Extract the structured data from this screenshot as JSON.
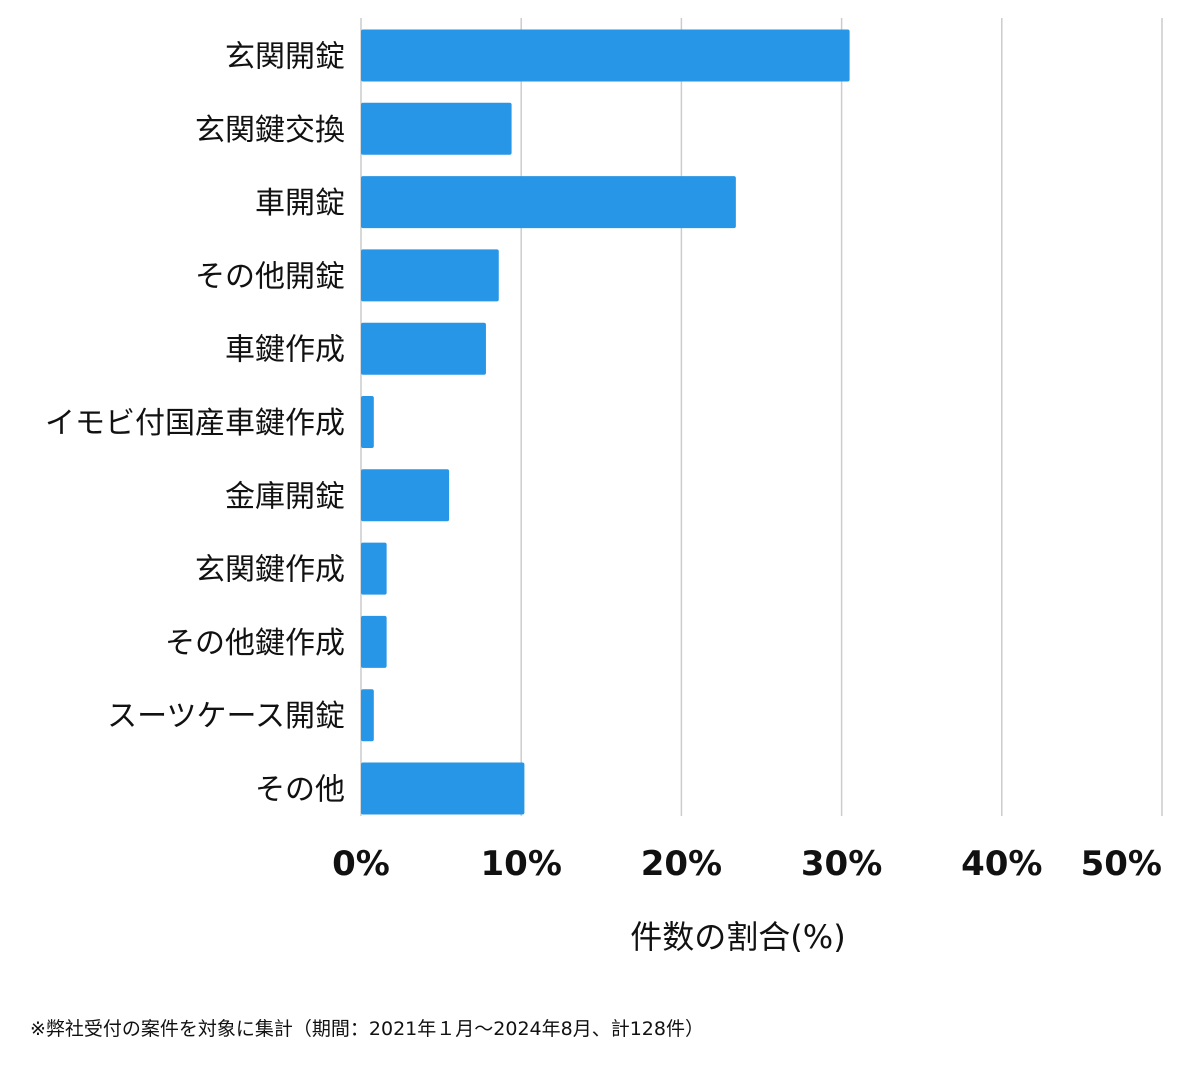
{
  "chart_data": {
    "type": "bar",
    "orientation": "horizontal",
    "categories": [
      "玄関開錠",
      "玄関鍵交換",
      "車開錠",
      "その他開錠",
      "車鍵作成",
      "イモビ付国産車鍵作成",
      "金庫開錠",
      "玄関鍵作成",
      "その他鍵作成",
      "スーツケース開錠",
      "その他"
    ],
    "values": [
      30.5,
      9.4,
      23.4,
      8.6,
      7.8,
      0.8,
      5.5,
      1.6,
      1.6,
      0.8,
      10.2
    ],
    "xlim": [
      0,
      50
    ],
    "xticks": [
      0,
      10,
      20,
      30,
      40,
      50
    ],
    "xtick_labels": [
      "0%",
      "10%",
      "20%",
      "30%",
      "40%",
      "50%"
    ],
    "xlabel": "件数の割合(%)",
    "grid": "vertical",
    "bar_color": "#2896e6",
    "grid_color": "#cccccc"
  },
  "footnote": "※弊社受付の案件を対象に集計（期間：2021年１月〜2024年8月、計128件）"
}
